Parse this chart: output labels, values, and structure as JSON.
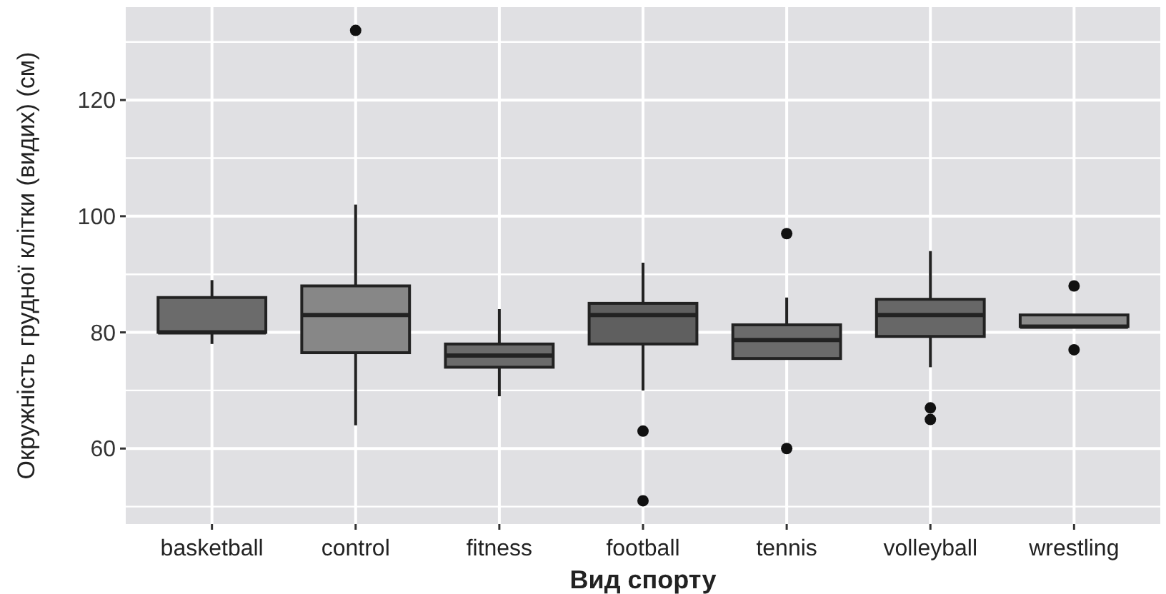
{
  "chart_data": {
    "type": "box",
    "xlabel": "Вид спорту",
    "ylabel": "Окружність грудної клітки (видих) (см)",
    "categories": [
      "basketball",
      "control",
      "fitness",
      "football",
      "tennis",
      "volleyball",
      "wrestling"
    ],
    "colors": [
      "#6b6b6b",
      "#878787",
      "#6b6b6b",
      "#5f5f5f",
      "#6b6b6b",
      "#676767",
      "#8a8a8a"
    ],
    "boxes": [
      {
        "low": 78,
        "q1": 80,
        "median": 80,
        "q3": 86,
        "high": 89
      },
      {
        "low": 64,
        "q1": 76.5,
        "median": 83,
        "q3": 88,
        "high": 102,
        "outliers": [
          132
        ]
      },
      {
        "low": 69,
        "q1": 74,
        "median": 76,
        "q3": 78,
        "high": 84
      },
      {
        "low": 70,
        "q1": 78,
        "median": 83,
        "q3": 85,
        "high": 92,
        "outliers": [
          63,
          51
        ]
      },
      {
        "low": 75.5,
        "q1": 75.5,
        "median": 78.7,
        "q3": 81.3,
        "high": 86,
        "outliers": [
          97,
          60
        ]
      },
      {
        "low": 74,
        "q1": 79.3,
        "median": 83,
        "q3": 85.7,
        "high": 94,
        "outliers": [
          67,
          65
        ]
      },
      {
        "low": 81,
        "q1": 81,
        "median": 81,
        "q3": 83,
        "high": 83,
        "outliers": [
          88,
          77
        ]
      }
    ],
    "ylim": [
      47,
      136
    ],
    "yticks": [
      60,
      80,
      100,
      120
    ],
    "grid": true
  }
}
